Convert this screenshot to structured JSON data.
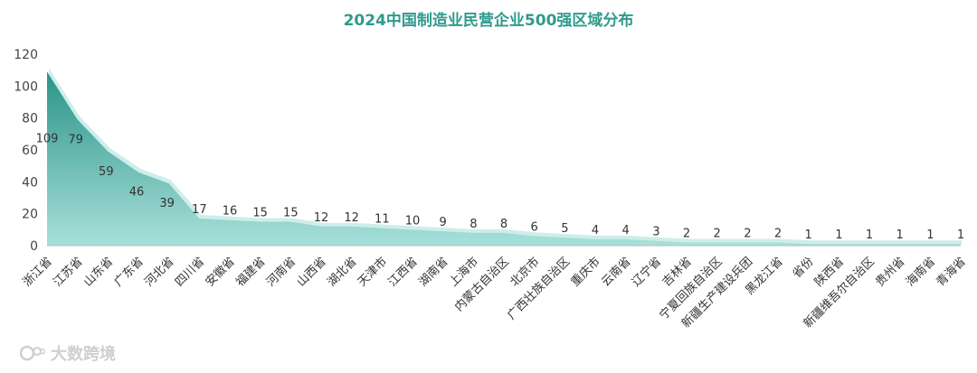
{
  "chart_data": {
    "type": "area",
    "title": "2024中国制造业民营企业500强区域分布",
    "categories": [
      "浙江省",
      "江苏省",
      "山东省",
      "广东省",
      "河北省",
      "四川省",
      "安徽省",
      "福建省",
      "河南省",
      "山西省",
      "湖北省",
      "天津市",
      "江西省",
      "湖南省",
      "上海市",
      "内蒙古自治区",
      "北京市",
      "广西壮族自治区",
      "重庆市",
      "云南省",
      "辽宁省",
      "吉林省",
      "宁夏回族自治区",
      "新疆生产建设兵团",
      "黑龙江省",
      "省份",
      "陕西省",
      "新疆维吾尔自治区",
      "贵州省",
      "海南省",
      "青海省"
    ],
    "values": [
      109,
      79,
      59,
      46,
      39,
      17,
      16,
      15,
      15,
      12,
      12,
      11,
      10,
      9,
      8,
      8,
      6,
      5,
      4,
      4,
      3,
      2,
      2,
      2,
      2,
      1,
      1,
      1,
      1,
      1,
      1
    ],
    "ylim": [
      0,
      120
    ],
    "yticks": [
      0,
      20,
      40,
      60,
      80,
      100,
      120
    ],
    "xlabel": "",
    "ylabel": "",
    "grid": false,
    "legend": "none",
    "colors": {
      "fill_top": "#2a9488",
      "fill_bottom": "#9fdcd6",
      "shadow": "#c9ebe7",
      "title": "#2f9a8c"
    }
  },
  "watermark": {
    "text": "大数跨境"
  }
}
